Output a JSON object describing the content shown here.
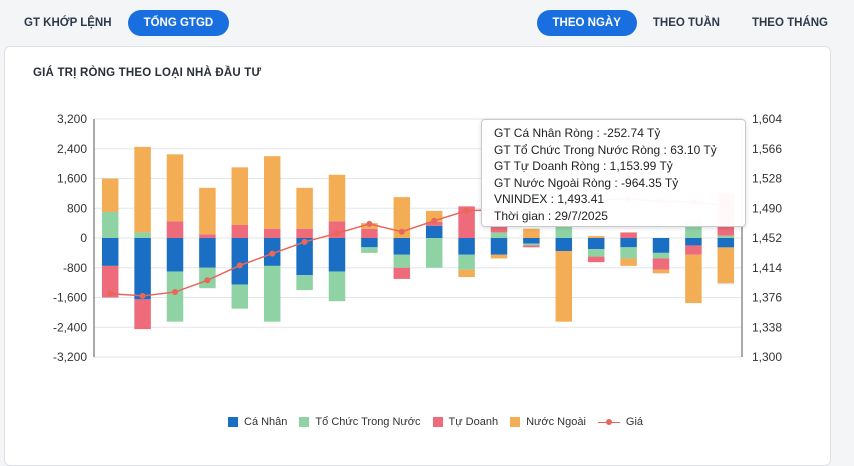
{
  "tabs_left": [
    {
      "label": "GT KHỚP LỆNH",
      "active": false
    },
    {
      "label": "TỔNG GTGD",
      "active": true
    }
  ],
  "tabs_right": [
    {
      "label": "THEO NGÀY",
      "active": true
    },
    {
      "label": "THEO TUẦN",
      "active": false
    },
    {
      "label": "THEO THÁNG",
      "active": false
    }
  ],
  "card": {
    "title": "GIÁ TRỊ RÒNG THEO LOẠI NHÀ ĐẦU TƯ"
  },
  "tooltip": {
    "lines": [
      "GT Cá Nhân Ròng  : -252.74 Tỷ",
      "GT Tổ Chức Trong Nước Ròng : 63.10 Tỷ",
      "GT Tự Doanh Ròng : 1,153.99 Tỷ",
      "GT Nước Ngoài Ròng : -964.35 Tỷ",
      "VNINDEX : 1,493.41",
      "Thời gian : 29/7/2025"
    ]
  },
  "chart_data": {
    "type": "bar",
    "stacked": true,
    "title": "",
    "ylim": [
      -3200,
      3200
    ],
    "y_ticks": [
      "3,200",
      "2,400",
      "1,600",
      "800",
      "0",
      "-800",
      "-1,600",
      "-2,400",
      "-3,200"
    ],
    "y2lim": [
      1300,
      1604
    ],
    "y2_ticks": [
      "1,604",
      "1,566",
      "1,528",
      "1,490",
      "1,452",
      "1,414",
      "1,376",
      "1,338",
      "1,300"
    ],
    "grid": true,
    "legend_position": "bottom",
    "colors": {
      "ca_nhan": "#1a6fc4",
      "to_chuc": "#8fd3a4",
      "tu_doanh": "#ee6b7b",
      "nuoc_ngoai": "#f2ad55",
      "gia": "#e8665a"
    },
    "series": [
      {
        "name": "Cá Nhân",
        "key": "ca_nhan",
        "values": [
          -750,
          -1650,
          -900,
          -800,
          -1250,
          -750,
          -1000,
          -900,
          -250,
          -450,
          330,
          -450,
          -450,
          -150,
          -350,
          -300,
          -250,
          -400,
          -200,
          -252.74
        ]
      },
      {
        "name": "Tổ Chức Trong Nước",
        "key": "to_chuc",
        "values": [
          700,
          150,
          -1350,
          -550,
          -650,
          -1500,
          -400,
          -800,
          -150,
          -350,
          -800,
          -400,
          150,
          -50,
          300,
          -200,
          -300,
          -150,
          500,
          63.1
        ]
      },
      {
        "name": "Tự Doanh",
        "key": "tu_doanh",
        "values": [
          -850,
          -800,
          450,
          100,
          350,
          250,
          250,
          450,
          250,
          -300,
          100,
          850,
          400,
          -50,
          300,
          -150,
          150,
          -300,
          -250,
          1153.99
        ]
      },
      {
        "name": "Nước Ngoài",
        "key": "nuoc_ngoai",
        "values": [
          900,
          2300,
          1800,
          1250,
          1550,
          1950,
          1100,
          1250,
          150,
          1100,
          300,
          -200,
          -100,
          250,
          -1900,
          50,
          -200,
          -100,
          -1300,
          -964.35
        ]
      }
    ],
    "line_series": {
      "name": "Giá",
      "key": "gia",
      "values": [
        1381,
        1378,
        1383,
        1398,
        1417,
        1432,
        1447,
        1458,
        1470,
        1460,
        1474,
        1487,
        1488,
        1493,
        1497,
        1500,
        1502,
        1499,
        1498,
        1493.41
      ]
    },
    "background_bar": {
      "min": -1250,
      "max": 0
    }
  }
}
